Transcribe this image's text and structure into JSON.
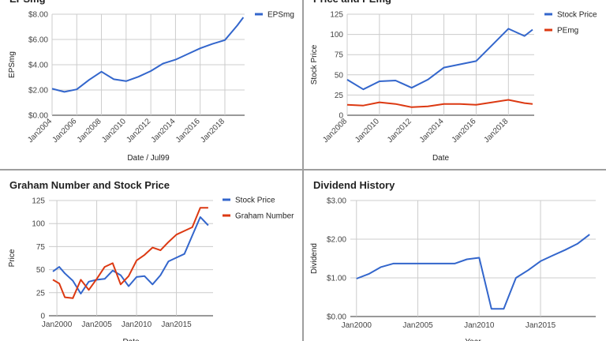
{
  "chart_data": [
    {
      "type": "line",
      "title": "EPSmg",
      "xlabel": "Date / Jul99",
      "ylabel": "EPSmg",
      "x_ticks": [
        "Jan2004",
        "Jan2006",
        "Jan2008",
        "Jan2010",
        "Jan2012",
        "Jan2014",
        "Jan2016",
        "Jan2018"
      ],
      "y_ticks": [
        "$0.00",
        "$2.00",
        "$4.00",
        "$6.00",
        "$8.00"
      ],
      "xlim": [
        2004.0,
        2019.6
      ],
      "ylim": [
        0,
        8
      ],
      "grid": true,
      "legend_position": "top-right",
      "series": [
        {
          "name": "EPSmg",
          "color": "#3366cc",
          "x": [
            2004.0,
            2005.0,
            2006.0,
            2007.0,
            2008.0,
            2009.0,
            2010.0,
            2011.0,
            2012.0,
            2013.0,
            2014.0,
            2015.0,
            2016.0,
            2017.0,
            2018.0,
            2019.0,
            2019.5
          ],
          "y": [
            2.1,
            1.85,
            2.05,
            2.8,
            3.45,
            2.85,
            2.7,
            3.05,
            3.5,
            4.1,
            4.4,
            4.85,
            5.3,
            5.65,
            5.95,
            7.1,
            7.75
          ]
        }
      ]
    },
    {
      "type": "line",
      "title": "Price and PEmg",
      "xlabel": "Date",
      "ylabel": "Stock Price",
      "x_ticks": [
        "Jan2008",
        "Jan2010",
        "Jan2012",
        "Jan2014",
        "Jan2016",
        "Jan2018"
      ],
      "y_ticks": [
        "0",
        "25",
        "50",
        "75",
        "100",
        "125"
      ],
      "xlim": [
        2008.0,
        2019.6
      ],
      "ylim": [
        0,
        125
      ],
      "grid": true,
      "legend_position": "top-right",
      "series": [
        {
          "name": "Stock Price",
          "color": "#3366cc",
          "x": [
            2008.0,
            2009.0,
            2010.0,
            2011.0,
            2012.0,
            2013.0,
            2014.0,
            2015.0,
            2016.0,
            2017.0,
            2018.0,
            2019.0,
            2019.5
          ],
          "y": [
            44,
            32,
            42,
            43,
            34,
            44,
            59,
            63,
            67,
            87,
            107,
            98,
            106
          ]
        },
        {
          "name": "PEmg",
          "color": "#dc3912",
          "x": [
            2008.0,
            2009.0,
            2010.0,
            2011.0,
            2012.0,
            2013.0,
            2014.0,
            2015.0,
            2016.0,
            2017.0,
            2018.0,
            2019.0,
            2019.5
          ],
          "y": [
            13,
            12,
            16,
            14,
            10,
            11,
            14,
            14,
            13,
            16,
            19,
            15,
            14
          ]
        }
      ]
    },
    {
      "type": "line",
      "title": "Graham Number and Stock Price",
      "xlabel": "Date",
      "ylabel": "Price",
      "x_ticks": [
        "Jan2000",
        "Jan2005",
        "Jan2010",
        "Jan2015"
      ],
      "y_ticks": [
        "0",
        "25",
        "50",
        "75",
        "100",
        "125"
      ],
      "xlim": [
        1999.0,
        2019.6
      ],
      "ylim": [
        0,
        125
      ],
      "grid": true,
      "legend_position": "top-right",
      "series": [
        {
          "name": "Stock Price",
          "color": "#3366cc",
          "x": [
            1999.5,
            2000.3,
            2001.0,
            2002.0,
            2003.0,
            2004.0,
            2005.0,
            2006.0,
            2007.0,
            2008.0,
            2009.0,
            2010.0,
            2011.0,
            2012.0,
            2013.0,
            2014.0,
            2015.0,
            2016.0,
            2017.0,
            2018.0,
            2019.0
          ],
          "y": [
            48,
            53,
            46,
            38,
            24,
            37,
            39,
            40,
            49,
            44,
            32,
            42,
            43,
            34,
            44,
            59,
            63,
            67,
            87,
            107,
            98
          ]
        },
        {
          "name": "Graham Number",
          "color": "#dc3912",
          "x": [
            1999.5,
            2000.3,
            2001.0,
            2002.0,
            2003.0,
            2004.0,
            2005.0,
            2006.0,
            2007.0,
            2008.0,
            2009.0,
            2010.0,
            2011.0,
            2012.0,
            2013.0,
            2014.0,
            2015.0,
            2016.0,
            2017.0,
            2018.0,
            2019.0
          ],
          "y": [
            39,
            35,
            20,
            19,
            39,
            28,
            40,
            53,
            57,
            34,
            43,
            60,
            66,
            74,
            71,
            80,
            88,
            92,
            96,
            117,
            117
          ]
        }
      ]
    },
    {
      "type": "line",
      "title": "Dividend History",
      "xlabel": "Year",
      "ylabel": "Dividend",
      "x_ticks": [
        "Jan2000",
        "Jan2005",
        "Jan2010",
        "Jan2015"
      ],
      "y_ticks": [
        "$0.00",
        "$1.00",
        "$2.00",
        "$3.00"
      ],
      "xlim": [
        1999.5,
        2019.5
      ],
      "ylim": [
        0,
        3
      ],
      "grid": true,
      "series": [
        {
          "name": "",
          "color": "#3366cc",
          "x": [
            2000.0,
            2001.0,
            2002.0,
            2003.0,
            2004.0,
            2005.0,
            2006.0,
            2007.0,
            2008.0,
            2009.0,
            2010.0,
            2011.0,
            2012.0,
            2013.0,
            2014.0,
            2015.0,
            2016.0,
            2017.0,
            2018.0,
            2019.0
          ],
          "y": [
            0.98,
            1.1,
            1.28,
            1.37,
            1.37,
            1.37,
            1.37,
            1.37,
            1.37,
            1.48,
            1.52,
            0.2,
            0.2,
            1.0,
            1.2,
            1.43,
            1.58,
            1.72,
            1.88,
            2.12
          ]
        }
      ]
    }
  ]
}
